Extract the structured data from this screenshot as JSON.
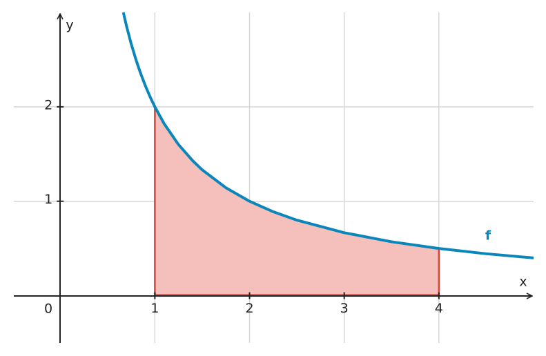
{
  "chart_data": {
    "type": "line",
    "xlabel": "x",
    "ylabel": "y",
    "origin_label": 0,
    "xlim": [
      -0.49,
      5.0
    ],
    "ylim": [
      -0.5,
      3.0
    ],
    "xticks": [
      1,
      2,
      3,
      4
    ],
    "yticks": [
      1,
      2
    ],
    "grid": true,
    "x": [
      0.667,
      0.7,
      0.75,
      0.8,
      0.85,
      0.9,
      0.95,
      1,
      1.1,
      1.25,
      1.4,
      1.5,
      1.75,
      2,
      2.25,
      2.5,
      3,
      3.5,
      4,
      4.5,
      5
    ],
    "series": [
      {
        "name": "f",
        "color": "#0a86bb",
        "values": [
          3,
          2.857,
          2.667,
          2.5,
          2.353,
          2.222,
          2.105,
          2,
          1.818,
          1.6,
          1.429,
          1.333,
          1.143,
          1,
          0.889,
          0.8,
          0.667,
          0.571,
          0.5,
          0.444,
          0.4
        ]
      }
    ],
    "area": {
      "from": 1,
      "to": 4,
      "color": "#f5c0bb",
      "edge_color": "#d9443a"
    }
  }
}
